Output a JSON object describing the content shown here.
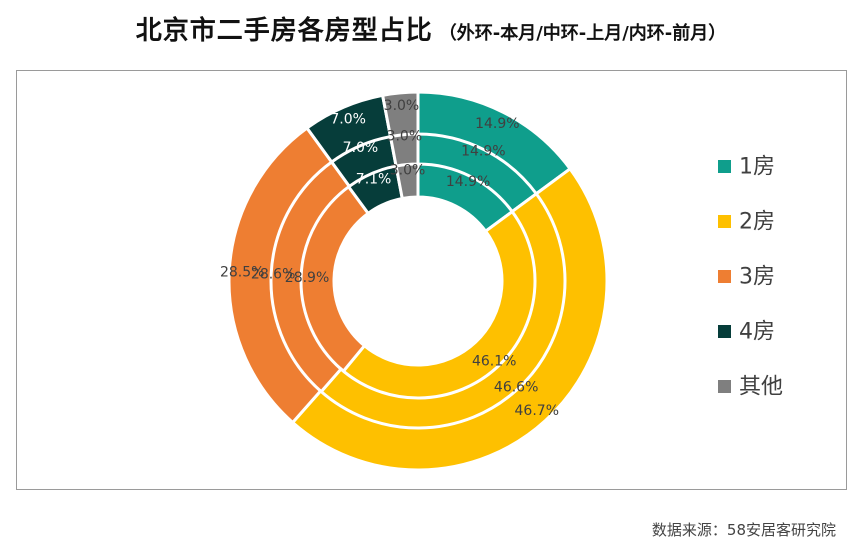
{
  "title": "北京市二手房各房型占比",
  "subtitle": "（外环-本月/中环-上月/内环-前月）",
  "source": "数据来源：58安居客研究院",
  "chart_data": {
    "type": "pie",
    "variant": "multi-ring donut",
    "categories": [
      "1房",
      "2房",
      "3房",
      "4房",
      "其他"
    ],
    "colors": [
      "#0f9e8c",
      "#fec000",
      "#ee7e32",
      "#063d3a",
      "#7f7f7f"
    ],
    "series": [
      {
        "values": [
          14.9,
          46.7,
          28.5,
          7.0,
          3.0
        ],
        "labels": [
          "14.9%",
          "46.7%",
          "28.5%",
          "7.0%",
          "3.0%"
        ]
      },
      {
        "values": [
          14.9,
          46.6,
          28.6,
          7.0,
          3.0
        ],
        "labels": [
          "14.9%",
          "46.6%",
          "28.6%",
          "7.0%",
          "3.0%"
        ]
      },
      {
        "values": [
          14.9,
          46.1,
          28.9,
          7.1,
          3.0
        ],
        "labels": [
          "14.9%",
          "46.1%",
          "28.9%",
          "7.1%",
          "3.0%"
        ]
      }
    ],
    "legend_position": "right"
  }
}
